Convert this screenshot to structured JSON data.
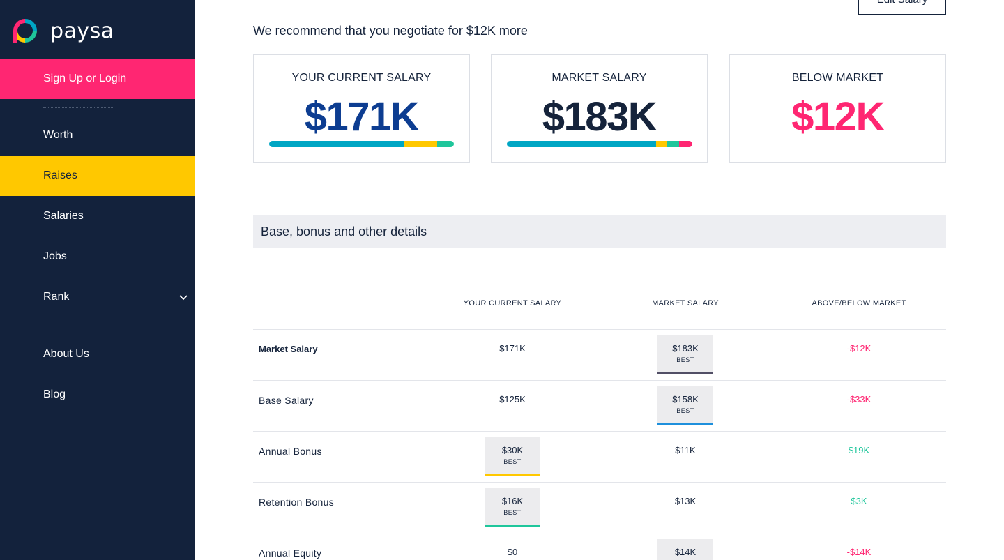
{
  "colors": {
    "sidebar_bg": "#13223c",
    "signup_bg": "#ff2672",
    "active_bg": "#ffc800",
    "blue": "#0d3d91",
    "pink": "#ff2672",
    "green": "#1fc69b",
    "bar_teal": "#00a6c4",
    "bar_yellow": "#ffc800",
    "bar_green": "#1fc69b",
    "bar_pink": "#ff2672"
  },
  "brand": {
    "name": "paysa",
    "logo_icon": "paysa-logo-icon"
  },
  "sidebar": {
    "signup": "Sign Up or Login",
    "items": [
      {
        "label": "Worth"
      },
      {
        "label": "Raises",
        "active": true
      },
      {
        "label": "Salaries"
      },
      {
        "label": "Jobs"
      },
      {
        "label": "Rank",
        "icon": "chevron-down-icon"
      },
      {
        "label": "About Us"
      },
      {
        "label": "Blog"
      }
    ]
  },
  "header": {
    "edit_button": "Edit Salary",
    "recommendation": "We recommend that you negotiate for $12K more"
  },
  "cards": [
    {
      "label": "YOUR CURRENT SALARY",
      "value": "$171K"
    },
    {
      "label": "MARKET SALARY",
      "value": "$183K"
    },
    {
      "label": "BELOW MARKET",
      "value": "$12K"
    }
  ],
  "details": {
    "title": "Base, bonus and other details",
    "columns": [
      "YOUR CURRENT SALARY",
      "MARKET SALARY",
      "ABOVE/BELOW MARKET"
    ],
    "best_tag": "BEST",
    "rows": [
      {
        "label": "Market Salary",
        "current": "$171K",
        "market": "$183K",
        "diff": "-$12K",
        "best": "market"
      },
      {
        "label": "Base Salary",
        "current": "$125K",
        "market": "$158K",
        "diff": "-$33K",
        "best": "market"
      },
      {
        "label": "Annual Bonus",
        "current": "$30K",
        "market": "$11K",
        "diff": "$19K",
        "best": "current"
      },
      {
        "label": "Retention Bonus",
        "current": "$16K",
        "market": "$13K",
        "diff": "$3K",
        "best": "current"
      },
      {
        "label": "Annual Equity",
        "current": "$0",
        "market": "$14K",
        "diff": "-$14K",
        "best": "market"
      }
    ]
  }
}
